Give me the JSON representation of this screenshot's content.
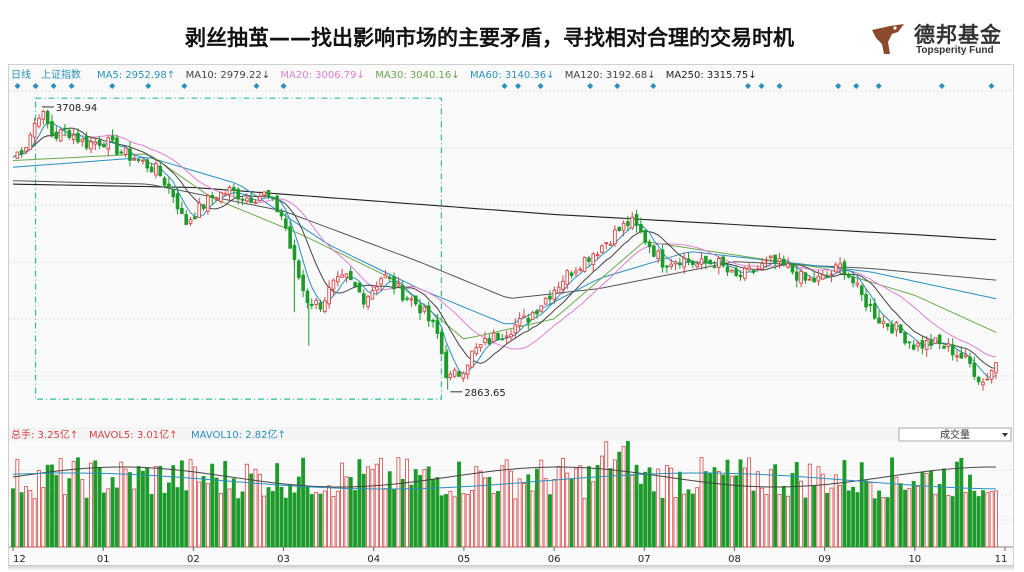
{
  "slide": {
    "title": "剥丝抽茧——找出影响市场的主要矛盾，寻找相对合理的交易时机"
  },
  "brand": {
    "name_cn": "德邦基金",
    "name_en": "Topsperity Fund",
    "icon": "bird-logo-icon",
    "color": "#8b4a2b"
  },
  "chart_data": {
    "type": "candlestick",
    "period_label": "日线",
    "index_name": "上证指数",
    "price_axis": {
      "ylim": [
        2780,
        3780
      ],
      "grid": true
    },
    "ma_legend": [
      {
        "label": "MA5: 2952.98↑",
        "color": "#2a8fbd"
      },
      {
        "label": "MA10: 2979.22↓",
        "color": "#444444"
      },
      {
        "label": "MA20: 3006.79↓",
        "color": "#e07fd0"
      },
      {
        "label": "MA30: 3040.16↓",
        "color": "#6aa84f"
      },
      {
        "label": "MA60: 3140.36↓",
        "color": "#2a8fbd"
      },
      {
        "label": "MA120: 3192.68↓",
        "color": "#444444"
      },
      {
        "label": "MA250: 3315.75↓",
        "color": "#222222"
      }
    ],
    "x_ticks": [
      "12",
      "01",
      "02",
      "03",
      "04",
      "05",
      "06",
      "07",
      "08",
      "09",
      "10",
      "11"
    ],
    "annotations": [
      {
        "text": "3708.94",
        "month_pos": 0.32,
        "value": 3708.94
      },
      {
        "text": "2863.65",
        "month_pos": 4.85,
        "value": 2863.65
      }
    ],
    "highlight_box": {
      "from_month": 0.25,
      "to_month": 4.75,
      "y_range": [
        2842,
        3735
      ]
    },
    "close_path": [
      {
        "m": 0.0,
        "v": 3560
      },
      {
        "m": 0.15,
        "v": 3600
      },
      {
        "m": 0.3,
        "v": 3700
      },
      {
        "m": 0.45,
        "v": 3620
      },
      {
        "m": 0.6,
        "v": 3640
      },
      {
        "m": 0.8,
        "v": 3600
      },
      {
        "m": 1.0,
        "v": 3610
      },
      {
        "m": 1.2,
        "v": 3575
      },
      {
        "m": 1.4,
        "v": 3550
      },
      {
        "m": 1.6,
        "v": 3520
      },
      {
        "m": 1.8,
        "v": 3440
      },
      {
        "m": 1.9,
        "v": 3360
      },
      {
        "m": 2.0,
        "v": 3390
      },
      {
        "m": 2.2,
        "v": 3440
      },
      {
        "m": 2.4,
        "v": 3460
      },
      {
        "m": 2.6,
        "v": 3440
      },
      {
        "m": 2.8,
        "v": 3450
      },
      {
        "m": 3.0,
        "v": 3380
      },
      {
        "m": 3.1,
        "v": 3260
      },
      {
        "m": 3.25,
        "v": 3140
      },
      {
        "m": 3.4,
        "v": 3120
      },
      {
        "m": 3.55,
        "v": 3180
      },
      {
        "m": 3.7,
        "v": 3200
      },
      {
        "m": 3.9,
        "v": 3140
      },
      {
        "m": 4.1,
        "v": 3210
      },
      {
        "m": 4.3,
        "v": 3160
      },
      {
        "m": 4.5,
        "v": 3120
      },
      {
        "m": 4.7,
        "v": 3040
      },
      {
        "m": 4.82,
        "v": 2900
      },
      {
        "m": 4.95,
        "v": 2920
      },
      {
        "m": 5.1,
        "v": 2980
      },
      {
        "m": 5.3,
        "v": 3020
      },
      {
        "m": 5.5,
        "v": 3050
      },
      {
        "m": 5.7,
        "v": 3080
      },
      {
        "m": 5.9,
        "v": 3140
      },
      {
        "m": 6.1,
        "v": 3200
      },
      {
        "m": 6.3,
        "v": 3250
      },
      {
        "m": 6.5,
        "v": 3290
      },
      {
        "m": 6.7,
        "v": 3340
      },
      {
        "m": 6.85,
        "v": 3370
      },
      {
        "m": 7.0,
        "v": 3320
      },
      {
        "m": 7.2,
        "v": 3250
      },
      {
        "m": 7.4,
        "v": 3260
      },
      {
        "m": 7.6,
        "v": 3240
      },
      {
        "m": 7.8,
        "v": 3250
      },
      {
        "m": 8.0,
        "v": 3200
      },
      {
        "m": 8.2,
        "v": 3220
      },
      {
        "m": 8.4,
        "v": 3250
      },
      {
        "m": 8.6,
        "v": 3230
      },
      {
        "m": 8.8,
        "v": 3190
      },
      {
        "m": 9.0,
        "v": 3200
      },
      {
        "m": 9.2,
        "v": 3240
      },
      {
        "m": 9.4,
        "v": 3150
      },
      {
        "m": 9.6,
        "v": 3080
      },
      {
        "m": 9.8,
        "v": 3050
      },
      {
        "m": 10.0,
        "v": 3000
      },
      {
        "m": 10.2,
        "v": 3010
      },
      {
        "m": 10.4,
        "v": 2990
      },
      {
        "m": 10.6,
        "v": 2950
      },
      {
        "m": 10.75,
        "v": 2890
      },
      {
        "m": 10.9,
        "v": 2950
      }
    ],
    "ma_paths": {
      "MA250": [
        {
          "m": 0.0,
          "v": 3480
        },
        {
          "m": 2.0,
          "v": 3470
        },
        {
          "m": 4.0,
          "v": 3430
        },
        {
          "m": 6.0,
          "v": 3390
        },
        {
          "m": 8.0,
          "v": 3360
        },
        {
          "m": 10.0,
          "v": 3330
        },
        {
          "m": 10.9,
          "v": 3315
        }
      ],
      "MA120": [
        {
          "m": 0.0,
          "v": 3490
        },
        {
          "m": 1.5,
          "v": 3480
        },
        {
          "m": 3.0,
          "v": 3400
        },
        {
          "m": 4.5,
          "v": 3250
        },
        {
          "m": 5.5,
          "v": 3140
        },
        {
          "m": 6.5,
          "v": 3170
        },
        {
          "m": 8.0,
          "v": 3250
        },
        {
          "m": 9.5,
          "v": 3230
        },
        {
          "m": 10.9,
          "v": 3195
        }
      ],
      "MA60": [
        {
          "m": 0.0,
          "v": 3530
        },
        {
          "m": 1.5,
          "v": 3560
        },
        {
          "m": 2.5,
          "v": 3480
        },
        {
          "m": 3.5,
          "v": 3300
        },
        {
          "m": 4.5,
          "v": 3170
        },
        {
          "m": 5.5,
          "v": 3060
        },
        {
          "m": 6.5,
          "v": 3200
        },
        {
          "m": 7.5,
          "v": 3280
        },
        {
          "m": 8.5,
          "v": 3250
        },
        {
          "m": 9.5,
          "v": 3220
        },
        {
          "m": 10.9,
          "v": 3140
        }
      ],
      "MA30": [
        {
          "m": 0.0,
          "v": 3550
        },
        {
          "m": 1.5,
          "v": 3570
        },
        {
          "m": 2.2,
          "v": 3440
        },
        {
          "m": 3.2,
          "v": 3330
        },
        {
          "m": 4.2,
          "v": 3200
        },
        {
          "m": 5.0,
          "v": 3020
        },
        {
          "m": 6.0,
          "v": 3080
        },
        {
          "m": 7.0,
          "v": 3310
        },
        {
          "m": 8.0,
          "v": 3270
        },
        {
          "m": 9.0,
          "v": 3230
        },
        {
          "m": 10.0,
          "v": 3150
        },
        {
          "m": 10.9,
          "v": 3040
        }
      ]
    },
    "volume": {
      "label": "总手: 3.25亿↑",
      "mavol5": "MAVOL5: 3.01亿↑",
      "mavol10": "MAVOL10: 2.82亿↑",
      "indicator": "成交量"
    },
    "colors": {
      "up": "#d64545",
      "down": "#1c9a2a",
      "grid": "#d9d9d9",
      "box": "#2fbf8f",
      "marker": "#2a8fbd"
    }
  }
}
